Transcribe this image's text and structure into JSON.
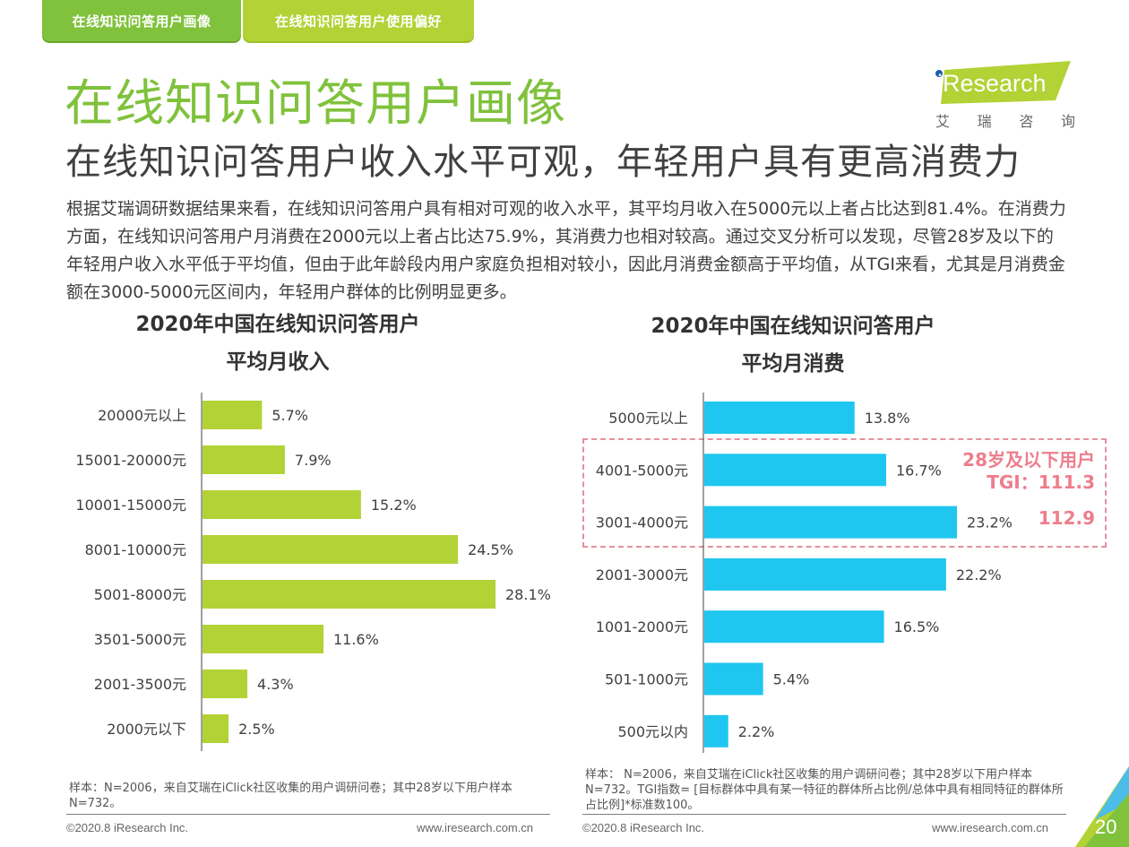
{
  "nav": {
    "tabs": [
      {
        "label": "在线知识问答用户画像",
        "active": true
      },
      {
        "label": "在线知识问答用户使用偏好",
        "active": false
      }
    ]
  },
  "header": {
    "title": "在线知识问答用户画像",
    "subtitle": "在线知识问答用户收入水平可观，年轻用户具有更高消费力",
    "logo": {
      "brand": "iResearch",
      "cn": [
        "艾",
        "瑞",
        "咨",
        "询"
      ]
    }
  },
  "description": "根据艾瑞调研数据结果来看，在线知识问答用户具有相对可观的收入水平，其平均月收入在5000元以上者占比达到81.4%。在消费力方面，在线知识问答用户月消费在2000元以上者占比达75.9%，其消费力也相对较高。通过交叉分析可以发现，尽管28岁及以下的年轻用户收入水平低于平均值，但由于此年龄段内用户家庭负担相对较小，因此月消费金额高于平均值，从TGI来看，尤其是月消费金额在3000-5000元区间内，年轻用户群体的比例明显更多。",
  "colors": {
    "brand_green": "#80c23c",
    "income_bar": "#b2d235",
    "spend_bar": "#1fc6f0",
    "tgi_highlight": "#ee7d8c"
  },
  "chart_data": [
    {
      "type": "bar",
      "orientation": "horizontal",
      "title_line1": "2020年中国在线知识问答用户",
      "title_line2": "平均月收入",
      "categories": [
        "20000元以上",
        "15001-20000元",
        "10001-15000元",
        "8001-10000元",
        "5001-8000元",
        "3501-5000元",
        "2001-3500元",
        "2000元以下"
      ],
      "values": [
        5.7,
        7.9,
        15.2,
        24.5,
        28.1,
        11.6,
        4.3,
        2.5
      ],
      "value_labels": [
        "5.7%",
        "7.9%",
        "15.2%",
        "24.5%",
        "28.1%",
        "11.6%",
        "4.3%",
        "2.5%"
      ],
      "unit": "%",
      "xlim": [
        0,
        28.1
      ],
      "grid": false,
      "legend": "none"
    },
    {
      "type": "bar",
      "orientation": "horizontal",
      "title_line1": "2020年中国在线知识问答用户",
      "title_line2": "平均月消费",
      "categories": [
        "5000元以上",
        "4001-5000元",
        "3001-4000元",
        "2001-3000元",
        "1001-2000元",
        "501-1000元",
        "500元以内"
      ],
      "values": [
        13.8,
        16.7,
        23.2,
        22.2,
        16.5,
        5.4,
        2.2
      ],
      "value_labels": [
        "13.8%",
        "16.7%",
        "23.2%",
        "22.2%",
        "16.5%",
        "5.4%",
        "2.2%"
      ],
      "unit": "%",
      "xlim": [
        0,
        23.2
      ],
      "grid": false,
      "legend": "none",
      "annotation": {
        "group": "28岁及以下用户",
        "tgi_prefix": "TGI：",
        "highlighted_categories": [
          "4001-5000元",
          "3001-4000元"
        ],
        "tgi_values": [
          "111.3",
          "112.9"
        ]
      }
    }
  ],
  "notes": {
    "left": "样本：N=2006，来自艾瑞在iClick社区收集的用户调研问卷；其中28岁以下用户样本N=732。",
    "right": "样本： N=2006，来自艾瑞在iClick社区收集的用户调研问卷；其中28岁以下用户样本N=732。TGI指数= [目标群体中具有某一特征的群体所占比例/总体中具有相同特征的群体所占比例]*标准数100。"
  },
  "footer": {
    "copyright": "©2020.8 iResearch Inc.",
    "url": "www.iresearch.com.cn",
    "page_number": "20"
  }
}
